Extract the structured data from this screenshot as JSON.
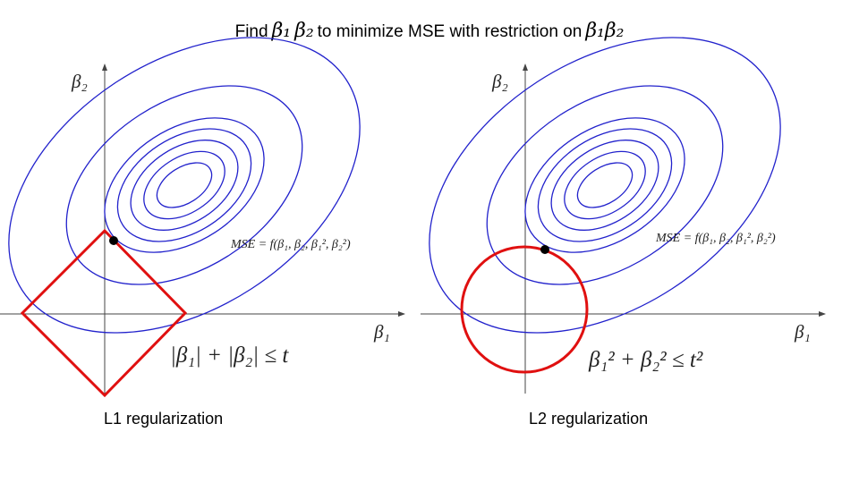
{
  "title": {
    "prefix": "Find",
    "var1": "β₁",
    "var2": "β₂",
    "middle": "to minimize MSE with restriction on",
    "var3": "β₁β₂"
  },
  "left_panel": {
    "x_axis_label": "β₁",
    "y_axis_label": "β₂",
    "mse_label": "MSE = f(β₁, β₂, β₁², β₂²)",
    "constraint_label": "|β₁| + |β₂| ≤ t",
    "caption": "L1 regularization"
  },
  "right_panel": {
    "x_axis_label": "β₁",
    "y_axis_label": "β₂",
    "mse_label": "MSE = f(β₁, β₂, β₁², β₂²)",
    "constraint_label": "β₁² + β₂² ≤ t²",
    "caption": "L2 regularization"
  },
  "colors": {
    "contour": "#2222cc",
    "constraint": "#e01010",
    "axis": "#444444",
    "point": "#000000"
  }
}
